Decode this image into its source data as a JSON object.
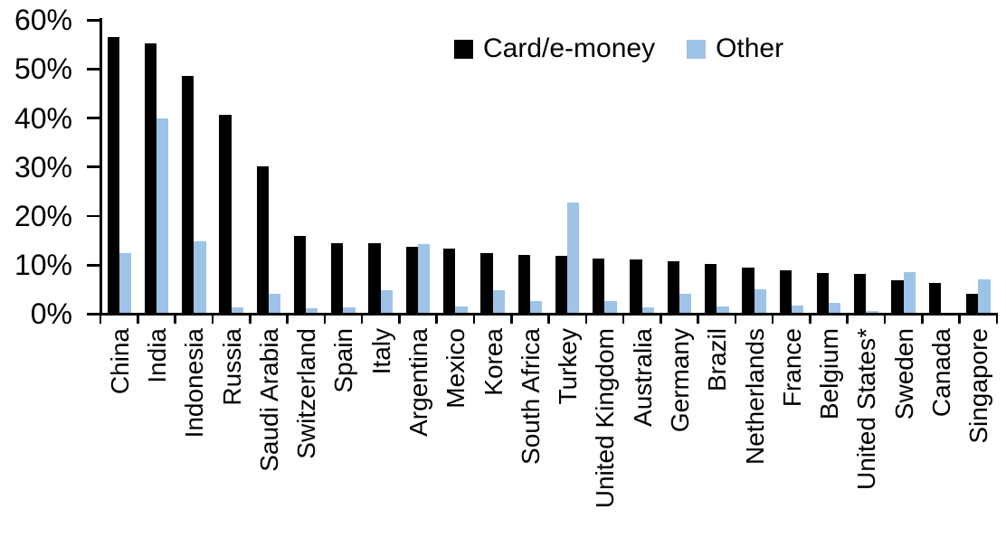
{
  "chart_data": {
    "type": "bar",
    "title": "",
    "categories": [
      "China",
      "India",
      "Indonesia",
      "Russia",
      "Saudi Arabia",
      "Switzerland",
      "Spain",
      "Italy",
      "Argentina",
      "Mexico",
      "Korea",
      "South Africa",
      "Turkey",
      "United Kingdom",
      "Australia",
      "Germany",
      "Brazil",
      "Netherlands",
      "France",
      "Belgium",
      "United States*",
      "Sweden",
      "Canada",
      "Singapore"
    ],
    "series": [
      {
        "name": "Card/e-money",
        "color": "#000000",
        "values": [
          56.3,
          55.0,
          48.3,
          40.4,
          29.8,
          15.6,
          14.2,
          14.1,
          13.4,
          13.0,
          12.2,
          11.8,
          11.6,
          11.1,
          10.8,
          10.5,
          10.0,
          9.2,
          8.6,
          8.1,
          7.9,
          6.6,
          6.0,
          3.9
        ]
      },
      {
        "name": "Other",
        "color": "#9DC3E6",
        "values": [
          12.2,
          39.7,
          14.5,
          1.0,
          3.9,
          0.8,
          1.0,
          4.6,
          13.9,
          1.3,
          4.6,
          2.4,
          22.5,
          2.3,
          1.0,
          3.9,
          1.2,
          4.8,
          1.5,
          2.0,
          0.3,
          8.2,
          0.0,
          6.7
        ]
      }
    ],
    "y_axis": {
      "ticks": [
        "0%",
        "10%",
        "20%",
        "30%",
        "40%",
        "50%",
        "60%"
      ],
      "min": 0,
      "max": 60,
      "unit": "%"
    },
    "x_axis": {
      "label": ""
    },
    "legend": {
      "position": "top-center"
    },
    "grid": "off"
  }
}
